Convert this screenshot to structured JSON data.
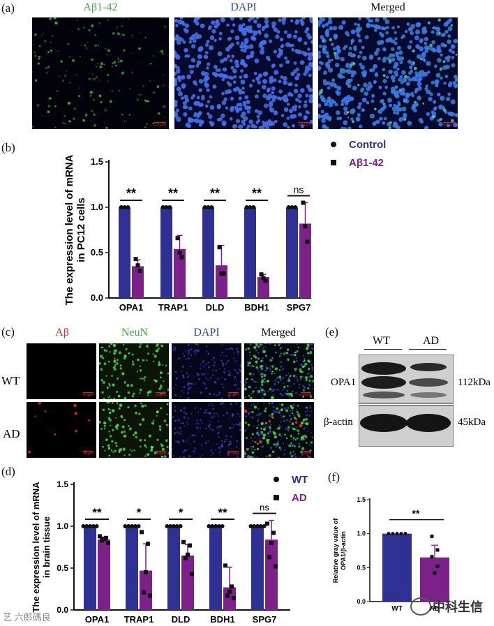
{
  "panels": {
    "a": {
      "label": "(a)",
      "headers": [
        "Aβ1-42",
        "DAPI",
        "Merged"
      ],
      "header_colors": [
        "#3fa83f",
        "#2a4b9a",
        "#111111"
      ],
      "scale_bar": "20 μm"
    },
    "c": {
      "label": "(c)",
      "headers": [
        "Aβ",
        "NeuN",
        "DAPI",
        "Merged"
      ],
      "header_colors": [
        "#d0302a",
        "#3fa83f",
        "#2a4b9a",
        "#111111"
      ],
      "rows": [
        "WT",
        "AD"
      ],
      "scale_bar": "50μm"
    },
    "e": {
      "label": "(e)",
      "lanes": [
        "WT",
        "AD"
      ],
      "bands": [
        "OPA1",
        "β-actin"
      ],
      "sizes": [
        "112kDa",
        "45kDa"
      ]
    },
    "b": {
      "label": "(b)"
    },
    "d": {
      "label": "(d)"
    },
    "f": {
      "label": "(f)"
    }
  },
  "chart_data": [
    {
      "id": "b",
      "type": "bar",
      "ylabel": "The expression level of mRNA in PC12 cells",
      "ylabel_lines": [
        "The expression level of mRNA",
        "in PC12 cells"
      ],
      "categories": [
        "OPA1",
        "TRAP1",
        "DLD",
        "BDH1",
        "SPG7"
      ],
      "ylim": [
        0,
        1.5
      ],
      "yticks": [
        "0.0",
        "0.5",
        "1.0",
        "1.5"
      ],
      "series": [
        {
          "name": "Control",
          "color": "#2e3192",
          "values": [
            1.0,
            1.0,
            1.0,
            1.0,
            1.0
          ],
          "errors": [
            0,
            0,
            0,
            0,
            0
          ],
          "points": [
            [
              1,
              1,
              1
            ],
            [
              1,
              1,
              1
            ],
            [
              1,
              1,
              1
            ],
            [
              1,
              1,
              1
            ],
            [
              1,
              1,
              1
            ]
          ]
        },
        {
          "name": "Aβ1-42",
          "color": "#7b2189",
          "values": [
            0.35,
            0.54,
            0.36,
            0.23,
            0.82
          ],
          "errors": [
            0.07,
            0.15,
            0.22,
            0.03,
            0.23
          ],
          "points": [
            [
              0.3,
              0.36,
              0.43
            ],
            [
              0.45,
              0.5,
              0.66
            ],
            [
              0.27,
              0.27,
              0.56
            ],
            [
              0.19,
              0.22,
              0.26
            ],
            [
              0.62,
              0.79,
              1.05
            ]
          ]
        }
      ],
      "significance": [
        "**",
        "**",
        "**",
        "**",
        "ns"
      ]
    },
    {
      "id": "d",
      "type": "bar",
      "ylabel": "The expression level of mRNA in brain tissue",
      "ylabel_lines": [
        "The expression level of mRNA",
        "in brain tissue"
      ],
      "categories": [
        "OPA1",
        "TRAP1",
        "DLD",
        "BDH1",
        "SPG7"
      ],
      "ylim": [
        0,
        1.5
      ],
      "yticks": [
        "0.0",
        "0.5",
        "1.0",
        "1.5"
      ],
      "series": [
        {
          "name": "WT",
          "color": "#2e3192",
          "values": [
            1.0,
            1.0,
            1.0,
            1.0,
            1.0
          ],
          "errors": [
            0,
            0,
            0,
            0,
            0
          ],
          "points": [
            [
              1,
              1,
              1,
              1,
              1
            ],
            [
              1,
              1,
              1,
              1,
              1
            ],
            [
              1,
              1,
              1,
              1,
              1
            ],
            [
              1,
              1,
              1,
              1,
              1
            ],
            [
              1,
              1,
              1,
              1,
              1
            ]
          ]
        },
        {
          "name": "AD",
          "color": "#7b2189",
          "values": [
            0.84,
            0.47,
            0.65,
            0.27,
            0.84
          ],
          "errors": [
            0.03,
            0.32,
            0.13,
            0.24,
            0.23
          ],
          "points": [
            [
              0.8,
              0.83,
              0.85,
              0.86,
              0.88
            ],
            [
              0.17,
              0.21,
              0.45,
              0.79,
              0.93
            ],
            [
              0.43,
              0.62,
              0.66,
              0.77,
              0.81
            ],
            [
              0.14,
              0.17,
              0.22,
              0.28,
              0.53
            ],
            [
              0.52,
              0.63,
              0.8,
              0.92,
              1.03
            ]
          ]
        }
      ],
      "significance": [
        "**",
        "*",
        "*",
        "**",
        "ns"
      ]
    },
    {
      "id": "f",
      "type": "bar",
      "ylabel": "Relative gray value of OPA1/β-actin",
      "ylabel_lines": [
        "Relative gray value of",
        "OPA1/β-actin"
      ],
      "categories": [
        "WT",
        "AD"
      ],
      "ylim": [
        0,
        1.5
      ],
      "yticks": [
        "0.0",
        "0.5",
        "1.0",
        "1.5"
      ],
      "values": [
        1.0,
        0.65
      ],
      "errors": [
        0,
        0.18
      ],
      "colors": [
        "#2e3192",
        "#7b2189"
      ],
      "points": [
        [
          1,
          1,
          1,
          1,
          1
        ],
        [
          0.42,
          0.52,
          0.66,
          0.76,
          0.96
        ]
      ],
      "significance": "**"
    }
  ],
  "watermark_left": "艺 六郎碼良",
  "watermark_right": "中科生信"
}
